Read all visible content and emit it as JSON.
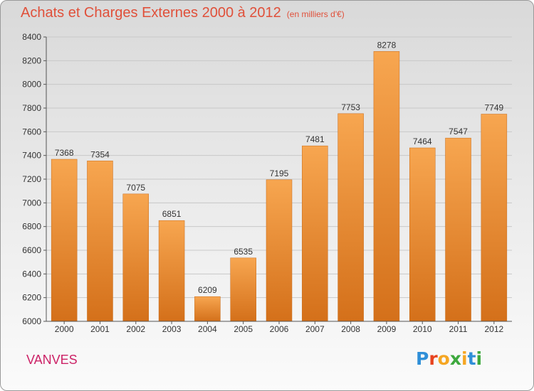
{
  "header": {
    "title": "Achats et Charges Externes 2000 à 2012",
    "unit": "(en milliers d'€)"
  },
  "footer": {
    "location": "VANVES",
    "brand": "Proxiti",
    "brand_letters": [
      {
        "ch": "P",
        "color": "#2f8fd8"
      },
      {
        "ch": "r",
        "color": "#e8431f"
      },
      {
        "ch": "o",
        "color": "#f5a623"
      },
      {
        "ch": "x",
        "color": "#3da83d"
      },
      {
        "ch": "i",
        "color": "#f5a623"
      },
      {
        "ch": "t",
        "color": "#2f8fd8"
      },
      {
        "ch": "i",
        "color": "#3da83d"
      }
    ]
  },
  "colors": {
    "title": "#e0503a",
    "bar_top": "#f7a650",
    "bar_bottom": "#d4701a",
    "grid": "#c8c8c8",
    "location": "#cc2266"
  },
  "chart_data": {
    "type": "bar",
    "categories": [
      "2000",
      "2001",
      "2002",
      "2003",
      "2004",
      "2005",
      "2006",
      "2007",
      "2008",
      "2009",
      "2010",
      "2011",
      "2012"
    ],
    "values": [
      7368,
      7354,
      7075,
      6851,
      6209,
      6535,
      7195,
      7481,
      7753,
      8278,
      7464,
      7547,
      7749
    ],
    "data_labels": [
      "7368",
      "7354",
      "7075",
      "6851",
      "6209",
      "6535",
      "7195",
      "7481",
      "7753",
      "8278",
      "7464",
      "7547",
      "7749"
    ],
    "title": "Achats et Charges Externes 2000 à 2012",
    "unit": "(en milliers d'€)",
    "xlabel": "",
    "ylabel": "",
    "ylim": [
      6000,
      8400
    ],
    "yticks": [
      "6000",
      "6200",
      "6400",
      "6600",
      "6800",
      "7000",
      "7200",
      "7400",
      "7600",
      "7800",
      "8000",
      "8200",
      "8400"
    ],
    "ytick_values": [
      6000,
      6200,
      6400,
      6600,
      6800,
      7000,
      7200,
      7400,
      7600,
      7800,
      8000,
      8200,
      8400
    ],
    "grid": true,
    "legend": "none"
  }
}
